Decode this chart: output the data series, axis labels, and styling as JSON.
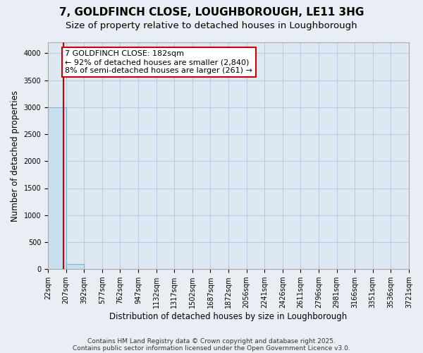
{
  "title": "7, GOLDFINCH CLOSE, LOUGHBOROUGH, LE11 3HG",
  "subtitle": "Size of property relative to detached houses in Loughborough",
  "xlabel": "Distribution of detached houses by size in Loughborough",
  "ylabel": "Number of detached properties",
  "bin_edges": [
    22,
    207,
    392,
    577,
    762,
    947,
    1132,
    1317,
    1502,
    1687,
    1872,
    2056,
    2241,
    2426,
    2611,
    2796,
    2981,
    3166,
    3351,
    3536,
    3721
  ],
  "bar_heights": [
    3000,
    100,
    0,
    0,
    0,
    0,
    0,
    0,
    0,
    0,
    0,
    0,
    0,
    0,
    0,
    0,
    0,
    0,
    0,
    0
  ],
  "bar_color": "#c8dff0",
  "bar_edgecolor": "#7ab4d8",
  "property_size": 182,
  "property_line_color": "#cc0000",
  "annotation_text": "7 GOLDFINCH CLOSE: 182sqm\n← 92% of detached houses are smaller (2,840)\n8% of semi-detached houses are larger (261) →",
  "annotation_box_color": "white",
  "annotation_box_edgecolor": "#cc0000",
  "ylim": [
    0,
    4200
  ],
  "yticks": [
    0,
    500,
    1000,
    1500,
    2000,
    2500,
    3000,
    3500,
    4000
  ],
  "xtick_labels": [
    "22sqm",
    "207sqm",
    "392sqm",
    "577sqm",
    "762sqm",
    "947sqm",
    "1132sqm",
    "1317sqm",
    "1502sqm",
    "1687sqm",
    "1872sqm",
    "2056sqm",
    "2241sqm",
    "2426sqm",
    "2611sqm",
    "2796sqm",
    "2981sqm",
    "3166sqm",
    "3351sqm",
    "3536sqm",
    "3721sqm"
  ],
  "footer_line1": "Contains HM Land Registry data © Crown copyright and database right 2025.",
  "footer_line2": "Contains public sector information licensed under the Open Government Licence v3.0.",
  "background_color": "#e8eef4",
  "plot_background_color": "#dde8f2",
  "grid_color": "#b8cde0",
  "title_fontsize": 11,
  "subtitle_fontsize": 9.5,
  "tick_fontsize": 7,
  "ylabel_fontsize": 8.5,
  "xlabel_fontsize": 8.5,
  "footer_fontsize": 6.5,
  "ann_fontsize": 8
}
